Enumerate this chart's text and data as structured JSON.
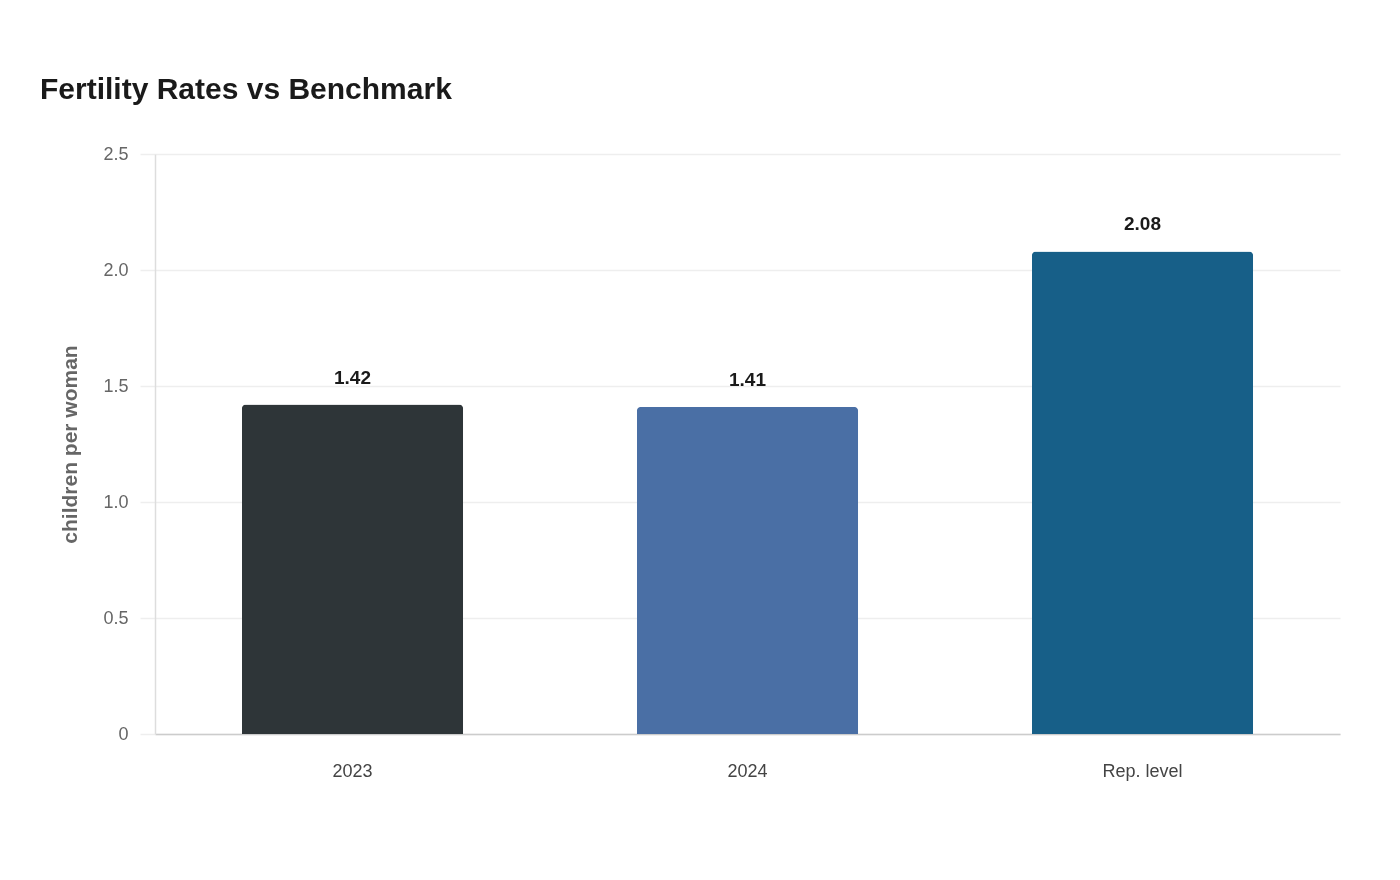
{
  "chart_data": {
    "type": "bar",
    "title": "Fertility Rates vs Benchmark",
    "ylabel": "children per woman",
    "categories": [
      "2023",
      "2024",
      "Rep. level"
    ],
    "values": [
      1.42,
      1.41,
      2.08
    ],
    "colors": [
      "#2e3538",
      "#4a6fa5",
      "#175f88"
    ],
    "ylim": [
      0,
      2.5
    ],
    "yticks": [
      0,
      0.5,
      {
        "value": 1,
        "label": "1.0"
      },
      1.5,
      {
        "value": 2,
        "label": "2.0"
      },
      2.5
    ],
    "grid": "y",
    "data_labels": true
  }
}
